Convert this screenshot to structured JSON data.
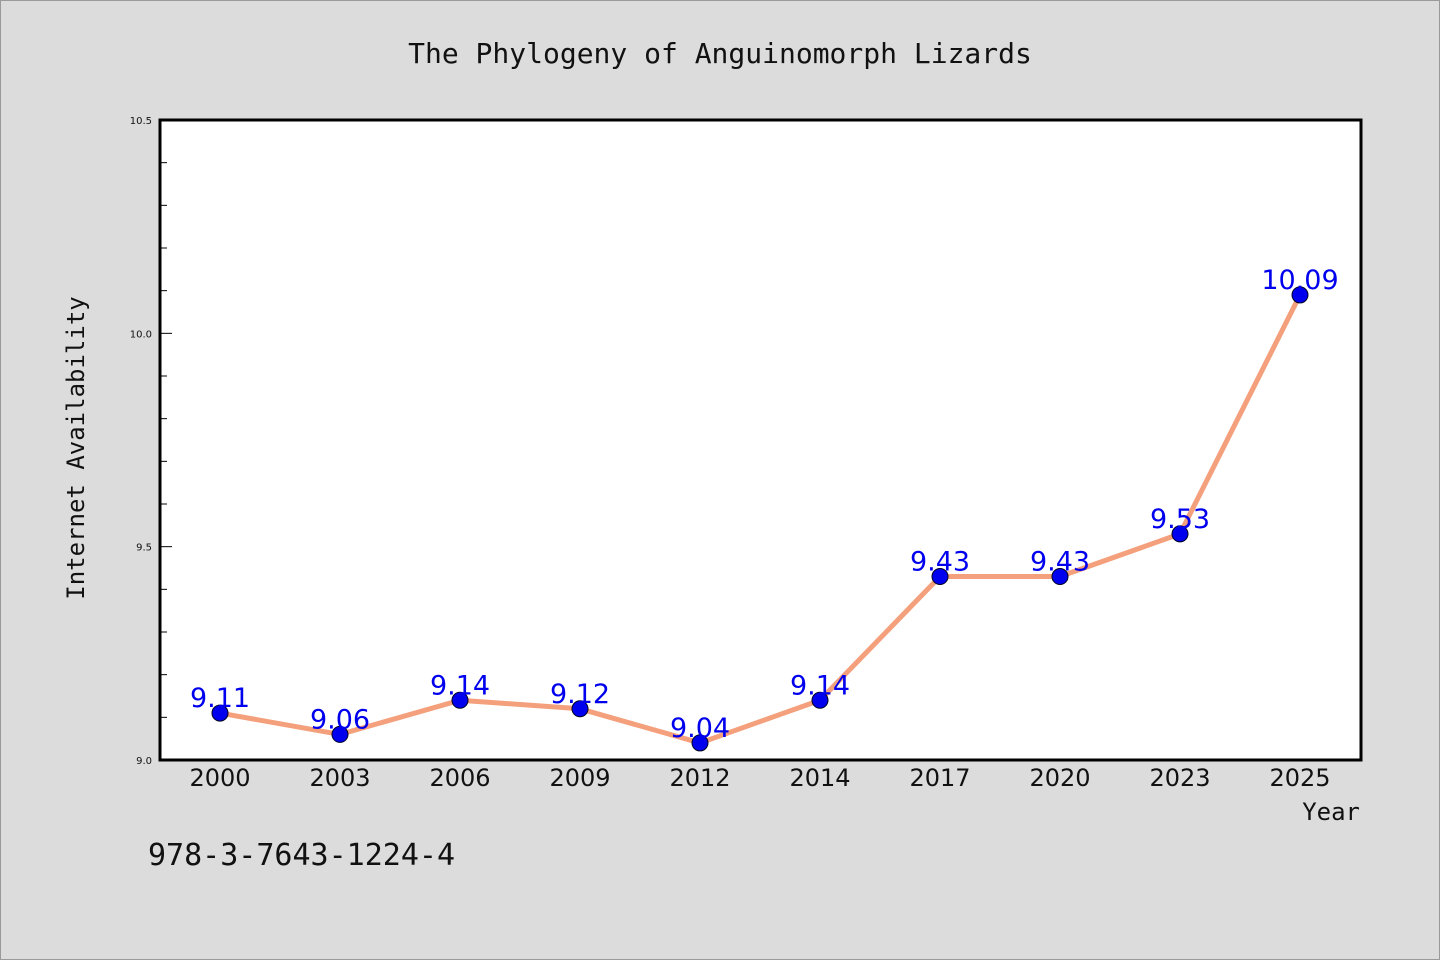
{
  "chart_data": {
    "type": "line",
    "title": "The Phylogeny of Anguinomorph Lizards",
    "xlabel": "Year",
    "ylabel": "Internet Availability",
    "categories": [
      "2000",
      "2003",
      "2006",
      "2009",
      "2012",
      "2014",
      "2017",
      "2020",
      "2023",
      "2025"
    ],
    "series": [
      {
        "values": [
          9.11,
          9.06,
          9.14,
          9.12,
          9.04,
          9.14,
          9.43,
          9.43,
          9.53,
          10.09
        ],
        "data_labels": [
          "9.11",
          "9.06",
          "9.14",
          "9.12",
          "9.04",
          "9.14",
          "9.43",
          "9.43",
          "9.53",
          "10.09"
        ]
      }
    ],
    "ylim": [
      9.0,
      10.5
    ],
    "yticks": [
      "9.0",
      "9.5",
      "10.0",
      "10.5"
    ],
    "grid": false,
    "legend": "none"
  },
  "footnote": "978-3-7643-1224-4",
  "colors": {
    "line": "#f4a07c",
    "marker": "#0000ee",
    "data_label": "#0000ee",
    "background": "#dcdcdc",
    "plot_background": "#ffffff"
  }
}
